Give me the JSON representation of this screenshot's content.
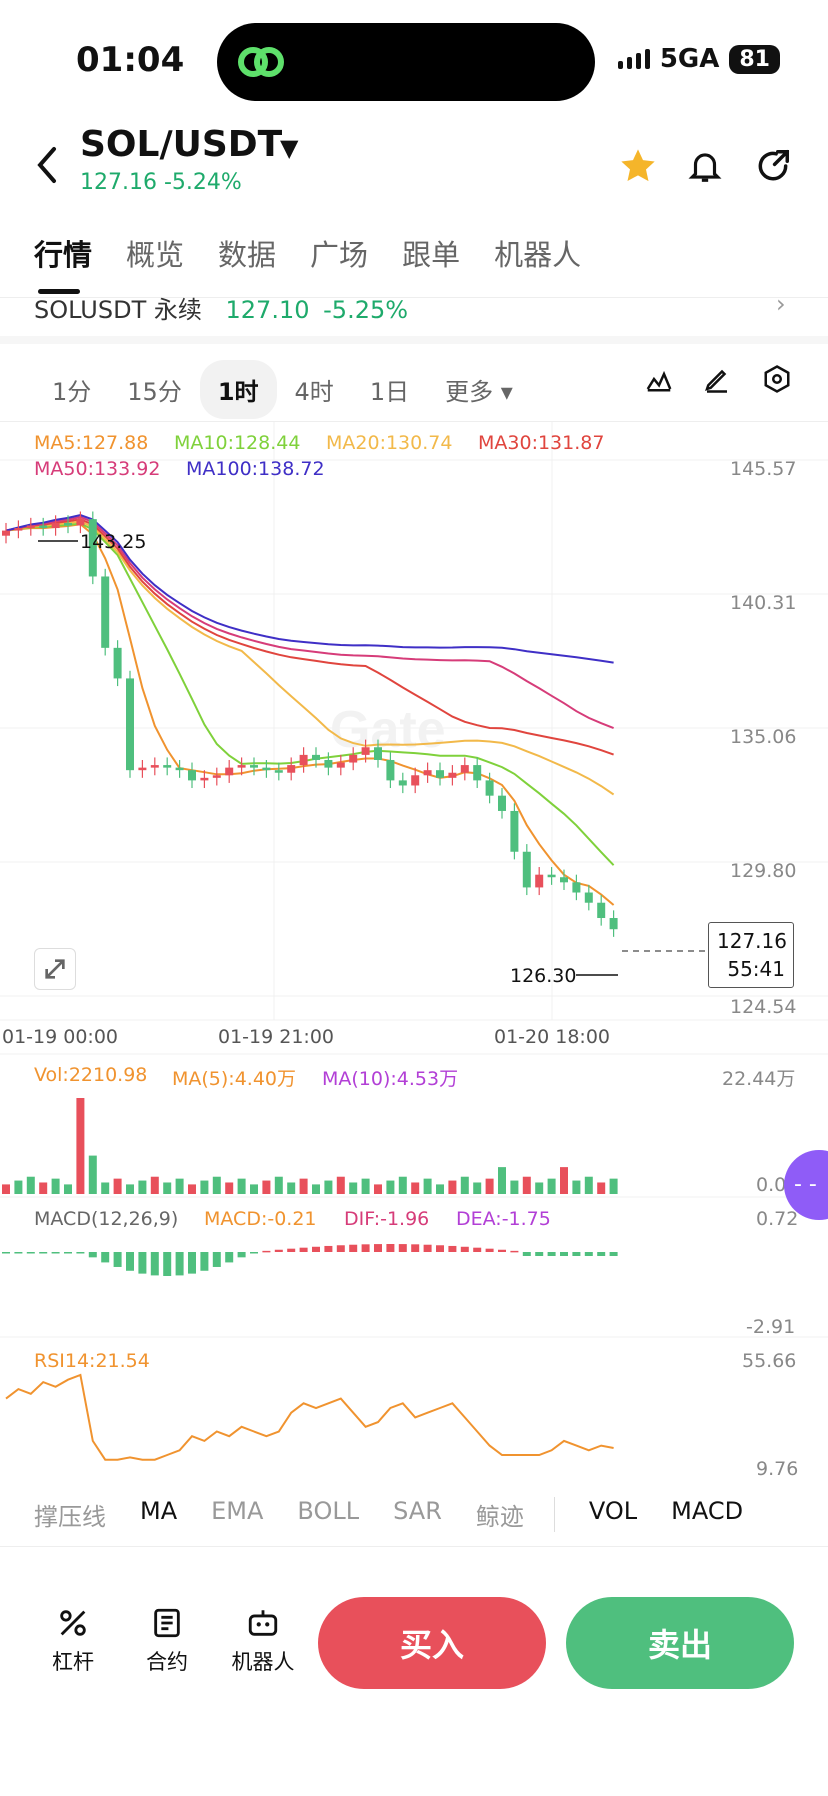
{
  "status": {
    "time": "01:04",
    "network": "5GA",
    "battery": "81"
  },
  "header": {
    "pair": "SOL/USDT",
    "price": "127.16",
    "change": "-5.24%",
    "icons": [
      "back-chevron-icon",
      "star-icon",
      "bell-icon",
      "share-icon"
    ],
    "favorite_color": "#f5b52a"
  },
  "tabs": [
    "行情",
    "概览",
    "数据",
    "广场",
    "跟单",
    "机器人"
  ],
  "contract": {
    "label": "SOLUSDT 永续",
    "price": "127.10",
    "change": "-5.25%"
  },
  "intervals": {
    "items": [
      "1分",
      "15分",
      "1时",
      "4时",
      "1日"
    ],
    "active": "1时",
    "more": "更多"
  },
  "ma_legend": {
    "ma5": "MA5:127.88",
    "ma10": "MA10:128.44",
    "ma20": "MA20:130.74",
    "ma30": "MA30:131.87",
    "ma50": "MA50:133.92",
    "ma100": "MA100:138.72"
  },
  "colors": {
    "up": "#4fbf7e",
    "down": "#e8505b",
    "ma5": "#f0932f",
    "ma10": "#7fd13b",
    "ma20": "#f2b94a",
    "ma30": "#e0453e",
    "ma50": "#d63c79",
    "ma100": "#3f2fc6"
  },
  "price_axis": [
    "145.57",
    "140.31",
    "135.06",
    "129.80",
    "124.54"
  ],
  "high_label": "143.25",
  "low_label": "126.30",
  "last_price": {
    "price": "127.16",
    "countdown": "55:41"
  },
  "time_axis": [
    "01-19 00:00",
    "01-19 21:00",
    "01-20 18:00"
  ],
  "vol_legend": {
    "vol": "Vol:2210.98",
    "ma5": "MA(5):4.40万",
    "ma10": "MA(10):4.53万"
  },
  "vol_axis": [
    "22.44万",
    "0.0"
  ],
  "macd_legend": {
    "name": "MACD(12,26,9)",
    "macd": "MACD:-0.21",
    "dif": "DIF:-1.96",
    "dea": "DEA:-1.75"
  },
  "macd_axis": [
    "0.72",
    "-2.91"
  ],
  "rsi_legend": "RSI14:21.54",
  "rsi_axis": [
    "55.66",
    "9.76"
  ],
  "indicators": [
    "撑压线",
    "MA",
    "EMA",
    "BOLL",
    "SAR",
    "鲸迹",
    "VOL",
    "MACD"
  ],
  "bottom": {
    "leverage": "杠杆",
    "futures": "合约",
    "bot": "机器人",
    "buy": "买入",
    "sell": "卖出"
  },
  "chart_data": {
    "type": "candlestick",
    "x": [
      "01-19 00:00",
      "01-19 21:00",
      "01-20 18:00"
    ],
    "ylim": [
      124.54,
      145.57
    ],
    "close_series": [
      142.8,
      142.9,
      143.0,
      142.9,
      143.1,
      143.0,
      143.25,
      141.0,
      138.2,
      137.0,
      133.4,
      133.5,
      133.6,
      133.5,
      133.4,
      133.0,
      133.1,
      133.2,
      133.5,
      133.6,
      133.5,
      133.4,
      133.3,
      133.6,
      134.0,
      133.8,
      133.5,
      133.7,
      134.0,
      134.3,
      133.8,
      133.0,
      132.8,
      133.2,
      133.4,
      133.1,
      133.3,
      133.6,
      133.0,
      132.4,
      131.8,
      130.2,
      128.8,
      129.3,
      129.2,
      129.0,
      128.6,
      128.2,
      127.6,
      127.16
    ],
    "low": 126.3,
    "high": 143.25,
    "volume_max": "22.44万",
    "rsi_range": [
      9.76,
      55.66
    ]
  }
}
